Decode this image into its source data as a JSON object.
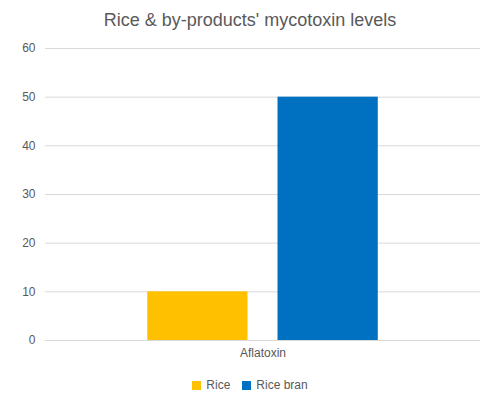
{
  "chart_data": {
    "type": "bar",
    "title": "Rice & by-products' mycotoxin levels",
    "categories": [
      "Aflatoxin"
    ],
    "series": [
      {
        "name": "Rice",
        "color": "#ffc000",
        "values": [
          10
        ]
      },
      {
        "name": "Rice bran",
        "color": "#0070c0",
        "values": [
          50
        ]
      }
    ],
    "ylim": [
      0,
      60
    ],
    "yticks": [
      0,
      10,
      20,
      30,
      40,
      50,
      60
    ],
    "grid": true,
    "legend": "bottom"
  }
}
